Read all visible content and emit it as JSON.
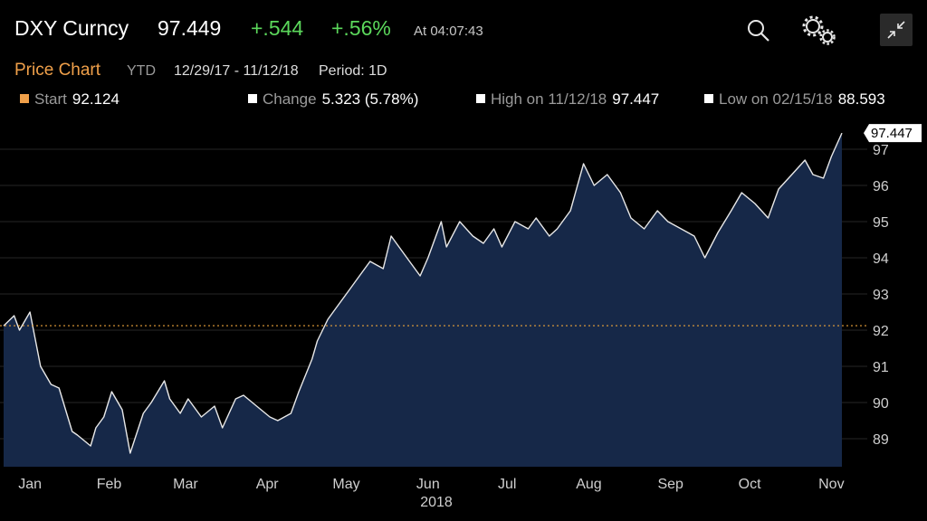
{
  "header": {
    "ticker": "DXY Curncy",
    "last_price": "97.449",
    "net_change": "+.544",
    "pct_change": "+.56%",
    "time": "At 04:07:43"
  },
  "toolbar": {
    "title": "Price Chart",
    "range_mode": "YTD",
    "date_range": "12/29/17 - 11/12/18",
    "period": "Period: 1D"
  },
  "stats": {
    "start": {
      "label": "Start",
      "value": "92.124"
    },
    "change": {
      "label": "Change",
      "value": "5.323 (5.78%)"
    },
    "high": {
      "label": "High on 11/12/18",
      "value": "97.447"
    },
    "low": {
      "label": "Low on 02/15/18",
      "value": "88.593"
    }
  },
  "colors": {
    "up": "#5bd75b",
    "accent": "#f0a04a",
    "area_fill": "#162848",
    "line": "#e8e8e8",
    "reference": "#e8a13a"
  },
  "icons": [
    "search-icon",
    "settings-gears-icon",
    "collapse-icon"
  ],
  "chart_data": {
    "type": "area",
    "ylim": [
      88,
      97.5
    ],
    "yticks": [
      "89",
      "90",
      "91",
      "92",
      "93",
      "94",
      "95",
      "96",
      "97"
    ],
    "xticks": [
      "Jan",
      "Feb",
      "Mar",
      "Apr",
      "May",
      "Jun",
      "Jul",
      "Aug",
      "Sep",
      "Oct",
      "Nov"
    ],
    "xtick_dates": [
      "2018-01-08",
      "2018-02-07",
      "2018-03-08",
      "2018-04-08",
      "2018-05-08",
      "2018-06-08",
      "2018-07-08",
      "2018-08-08",
      "2018-09-08",
      "2018-10-08",
      "2018-11-08"
    ],
    "year_label": "2018",
    "date_range": [
      "2017-12-29",
      "2018-11-12"
    ],
    "reference_line": 92.124,
    "last_value_label": "97.447",
    "series": [
      {
        "x": [
          "2017-12-29",
          "2018-01-02",
          "2018-01-04",
          "2018-01-08",
          "2018-01-12",
          "2018-01-16",
          "2018-01-19",
          "2018-01-24",
          "2018-01-26",
          "2018-01-31",
          "2018-02-02",
          "2018-02-05",
          "2018-02-08",
          "2018-02-12",
          "2018-02-15",
          "2018-02-20",
          "2018-02-23",
          "2018-02-28",
          "2018-03-02",
          "2018-03-06",
          "2018-03-09",
          "2018-03-14",
          "2018-03-19",
          "2018-03-22",
          "2018-03-27",
          "2018-03-30",
          "2018-04-04",
          "2018-04-09",
          "2018-04-12",
          "2018-04-17",
          "2018-04-20",
          "2018-04-25",
          "2018-04-27",
          "2018-05-01",
          "2018-05-04",
          "2018-05-09",
          "2018-05-14",
          "2018-05-17",
          "2018-05-22",
          "2018-05-25",
          "2018-05-29",
          "2018-06-01",
          "2018-06-05",
          "2018-06-08",
          "2018-06-13",
          "2018-06-15",
          "2018-06-20",
          "2018-06-25",
          "2018-06-29",
          "2018-07-03",
          "2018-07-06",
          "2018-07-11",
          "2018-07-16",
          "2018-07-19",
          "2018-07-24",
          "2018-07-27",
          "2018-08-01",
          "2018-08-06",
          "2018-08-10",
          "2018-08-15",
          "2018-08-20",
          "2018-08-24",
          "2018-08-29",
          "2018-09-03",
          "2018-09-07",
          "2018-09-12",
          "2018-09-17",
          "2018-09-21",
          "2018-09-26",
          "2018-10-01",
          "2018-10-05",
          "2018-10-10",
          "2018-10-15",
          "2018-10-19",
          "2018-10-24",
          "2018-10-29",
          "2018-11-01",
          "2018-11-05",
          "2018-11-08",
          "2018-11-12"
        ],
        "y": [
          92.12,
          92.4,
          92.0,
          92.5,
          91.0,
          90.5,
          90.4,
          89.2,
          89.1,
          88.8,
          89.3,
          89.6,
          90.3,
          89.8,
          88.6,
          89.7,
          90.0,
          90.6,
          90.1,
          89.7,
          90.1,
          89.6,
          89.9,
          89.3,
          90.1,
          90.2,
          89.9,
          89.6,
          89.5,
          89.7,
          90.3,
          91.2,
          91.7,
          92.3,
          92.6,
          93.1,
          93.6,
          93.9,
          93.7,
          94.6,
          94.2,
          93.9,
          93.5,
          94.0,
          95.0,
          94.3,
          95.0,
          94.6,
          94.4,
          94.8,
          94.3,
          95.0,
          94.8,
          95.1,
          94.6,
          94.8,
          95.3,
          96.6,
          96.0,
          96.3,
          95.8,
          95.1,
          94.8,
          95.3,
          95.0,
          94.8,
          94.6,
          94.0,
          94.7,
          95.3,
          95.8,
          95.5,
          95.1,
          95.9,
          96.3,
          96.7,
          96.3,
          96.2,
          96.8,
          97.447
        ]
      }
    ]
  }
}
